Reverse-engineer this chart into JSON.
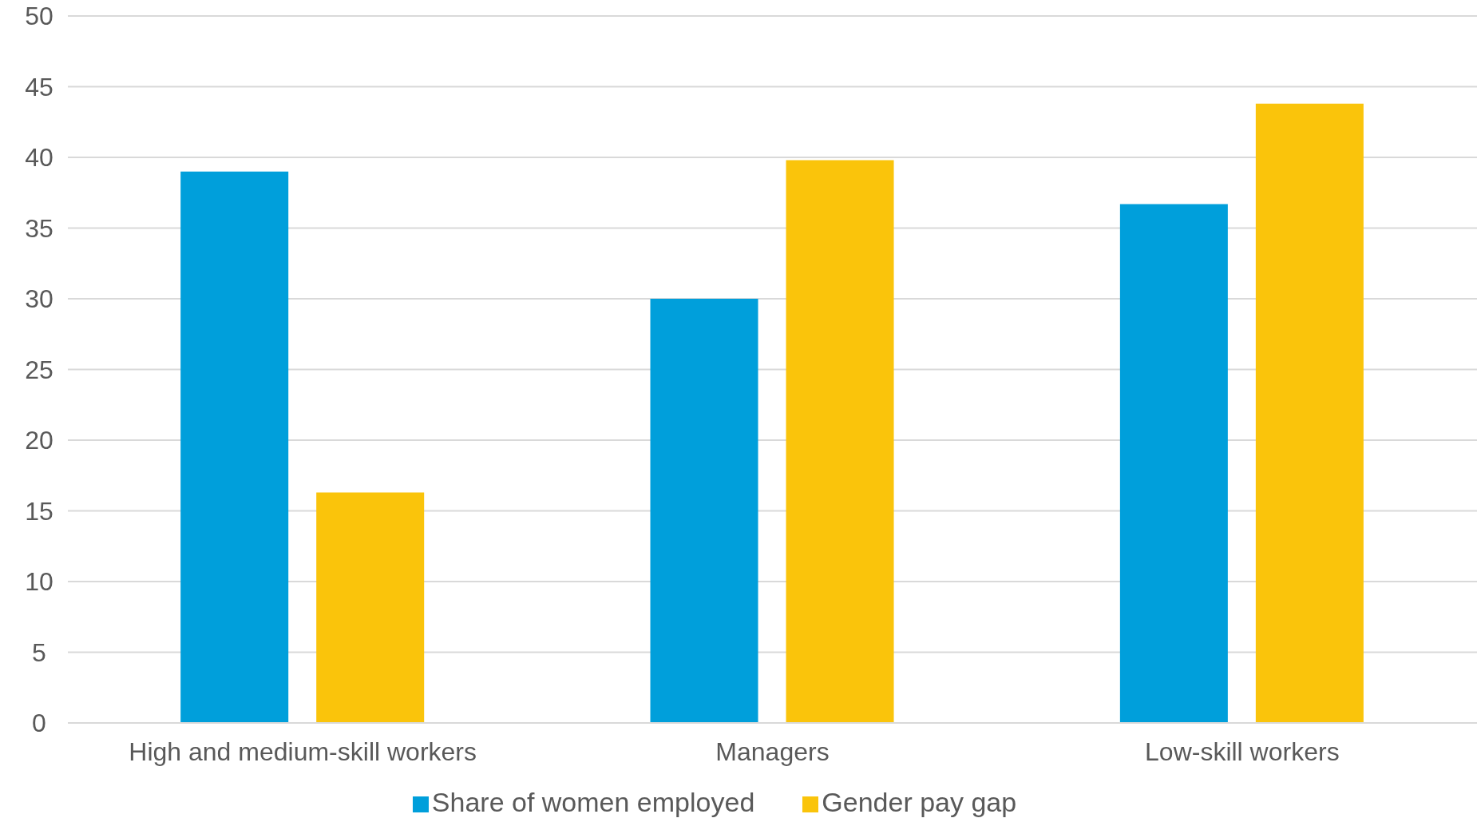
{
  "chart_data": {
    "type": "bar",
    "categories": [
      "High and medium-skill workers",
      "Managers",
      "Low-skill workers"
    ],
    "series": [
      {
        "name": "Share of women employed",
        "color": "#009fdb",
        "values": [
          39,
          30,
          36.7
        ]
      },
      {
        "name": "Gender pay gap",
        "color": "#fac40b",
        "values": [
          16.3,
          39.8,
          43.8
        ]
      }
    ],
    "ylim": [
      0,
      50
    ],
    "yticks": [
      0,
      5,
      10,
      15,
      20,
      25,
      30,
      35,
      40,
      45,
      50
    ],
    "grid": "y",
    "legend": "bottom"
  }
}
